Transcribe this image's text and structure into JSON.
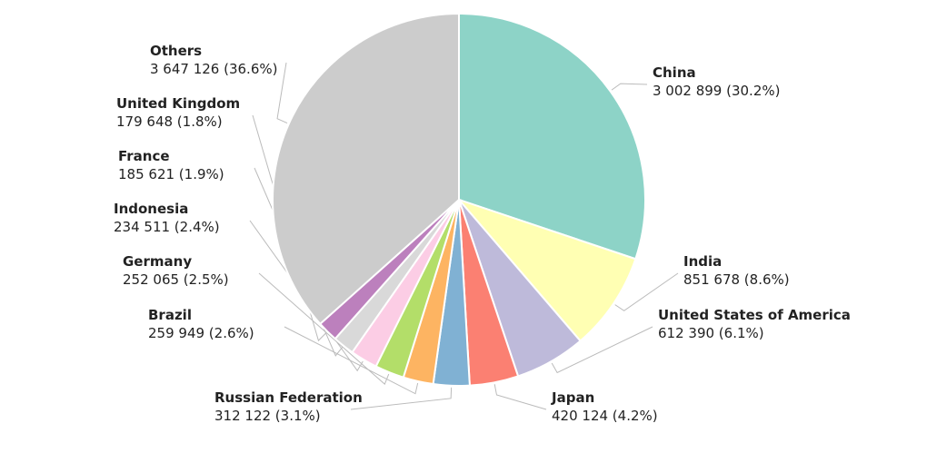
{
  "chart_data": {
    "type": "pie",
    "categories": [
      "China",
      "India",
      "United States of America",
      "Japan",
      "Russian Federation",
      "Brazil",
      "Germany",
      "Indonesia",
      "France",
      "United Kingdom",
      "Others"
    ],
    "values": [
      3002899,
      851678,
      612390,
      420124,
      312122,
      259949,
      252065,
      234511,
      185621,
      179648,
      3647126
    ],
    "value_labels": [
      "3 002 899 (30.2%)",
      "851 678 (8.6%)",
      "612 390 (6.1%)",
      "420 124 (4.2%)",
      "312 122 (3.1%)",
      "259 949 (2.6%)",
      "252 065 (2.5%)",
      "234 511 (2.4%)",
      "185 621 (1.9%)",
      "179 648 (1.8%)",
      "3 647 126 (36.6%)"
    ],
    "colors": [
      "#8dd3c7",
      "#ffffb3",
      "#bebada",
      "#fb8072",
      "#80b1d3",
      "#fdb462",
      "#b3de69",
      "#fccde5",
      "#d9d9d9",
      "#bc80bd",
      "#cccccc"
    ]
  }
}
